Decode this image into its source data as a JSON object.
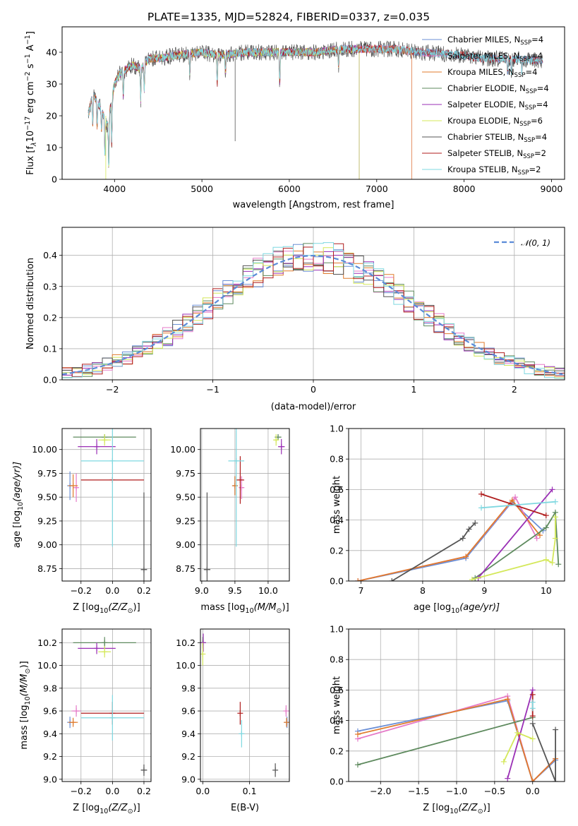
{
  "colors": {
    "Chabrier MILES": "#6b8fd6",
    "Salpeter MILES": "#e57ac8",
    "Kroupa MILES": "#e07b2c",
    "Chabrier ELODIE": "#5e8a5e",
    "Salpeter ELODIE": "#9a2fb5",
    "Kroupa ELODIE": "#d4e85a",
    "Chabrier STELIB": "#555555",
    "Salpeter STELIB": "#b01e1e",
    "Kroupa STELIB": "#7fd8e0",
    "normal": "#5b8bd8"
  },
  "chart_data": [
    {
      "id": "spectrum",
      "type": "line",
      "title": "PLATE=1335, MJD=52824, FIBERID=0337, z=0.035",
      "xlabel": "wavelength [Angstrom, rest frame]",
      "ylabel": "Flux [f",
      "ylabel_sub": "λ",
      "ylabel_rest": "10",
      "ylabel_exp": "−17",
      "ylabel_tail": " erg cm",
      "ylabel_exp2": "−2",
      "ylabel_tail2": " s",
      "ylabel_exp3": "−1",
      "ylabel_tail3": " A",
      "ylabel_exp4": "−1",
      "ylabel_end": "]",
      "xlim": [
        3400,
        9150
      ],
      "ylim": [
        0,
        48
      ],
      "xticks": [
        "4000",
        "5000",
        "6000",
        "7000",
        "8000",
        "9000"
      ],
      "yticks": [
        "0",
        "10",
        "20",
        "30",
        "40"
      ],
      "legend": [
        {
          "model": "Chabrier MILES",
          "n": "4"
        },
        {
          "model": "Salpeter MILES",
          "n": "4"
        },
        {
          "model": "Kroupa MILES",
          "n": "4"
        },
        {
          "model": "Chabrier ELODIE",
          "n": "4"
        },
        {
          "model": "Salpeter ELODIE",
          "n": "4"
        },
        {
          "model": "Kroupa ELODIE",
          "n": "6"
        },
        {
          "model": "Chabrier STELIB",
          "n": "4"
        },
        {
          "model": "Salpeter STELIB",
          "n": "2"
        },
        {
          "model": "Kroupa STELIB",
          "n": "2"
        }
      ],
      "legend_label_prefix": "N",
      "legend_label_sub": "SSP",
      "legend_placement": "right",
      "continuum": [
        [
          3700,
          20
        ],
        [
          3750,
          27
        ],
        [
          3850,
          22
        ],
        [
          3920,
          17
        ],
        [
          3960,
          24
        ],
        [
          4000,
          30
        ],
        [
          4050,
          33
        ],
        [
          4100,
          34
        ],
        [
          4200,
          36
        ],
        [
          4300,
          35
        ],
        [
          4400,
          38
        ],
        [
          4500,
          38
        ],
        [
          4700,
          39
        ],
        [
          5000,
          40
        ],
        [
          5200,
          39
        ],
        [
          5500,
          40
        ],
        [
          5800,
          40
        ],
        [
          6000,
          40
        ],
        [
          6300,
          40
        ],
        [
          6600,
          41
        ],
        [
          6800,
          41
        ],
        [
          7000,
          41
        ],
        [
          7200,
          41
        ],
        [
          7500,
          40
        ],
        [
          7800,
          39.5
        ],
        [
          8000,
          39
        ],
        [
          8200,
          38
        ],
        [
          8500,
          38
        ],
        [
          8800,
          37.5
        ],
        [
          8900,
          37.5
        ]
      ],
      "absorption_dips": [
        [
          3750,
          10
        ],
        [
          3800,
          8
        ],
        [
          3850,
          7
        ],
        [
          3890,
          12
        ],
        [
          3934,
          16
        ],
        [
          3968,
          14
        ],
        [
          4101,
          8
        ],
        [
          4300,
          10
        ],
        [
          4340,
          8
        ],
        [
          4861,
          6
        ],
        [
          5175,
          9
        ],
        [
          5270,
          6
        ],
        [
          5890,
          10
        ],
        [
          6563,
          5
        ],
        [
          8500,
          4
        ],
        [
          8542,
          5
        ],
        [
          8662,
          4
        ]
      ]
    },
    {
      "id": "residuals",
      "type": "histogram",
      "xlabel": "(data-model)/error",
      "ylabel": "Normed distribution",
      "xlim": [
        -2.5,
        2.5
      ],
      "ylim": [
        0,
        0.49
      ],
      "xticks": [
        "−2",
        "−1",
        "0",
        "1",
        "2"
      ],
      "yticks": [
        "0.0",
        "0.1",
        "0.2",
        "0.3",
        "0.4"
      ],
      "legend_label": "𝒩(0, 1)",
      "legend_placement": "top-right",
      "bin_width": 0.1
    },
    {
      "id": "age-vs-Z",
      "type": "scatter",
      "xlabel": "Z [log",
      "xlabel_sub": "10",
      "xlabel_rest": "(Z/Z",
      "xlabel_sub2": "⊙",
      "xlabel_end": ")]",
      "ylabel": "age  [log",
      "ylabel_sub": "10",
      "ylabel_rest": "(age/yr)]",
      "xlim": [
        -0.32,
        0.245
      ],
      "ylim": [
        8.62,
        10.22
      ],
      "xticks": [
        {
          "v": -0.2,
          "t": "−0.2"
        },
        {
          "v": 0.0,
          "t": "0.0"
        },
        {
          "v": 0.2,
          "t": "0.2"
        }
      ],
      "yticks": [
        {
          "v": 8.75,
          "t": "8.75"
        },
        {
          "v": 9.0,
          "t": "9.00"
        },
        {
          "v": 9.25,
          "t": "9.25"
        },
        {
          "v": 9.5,
          "t": "9.50"
        },
        {
          "v": 9.75,
          "t": "9.75"
        },
        {
          "v": 10.0,
          "t": "10.00"
        }
      ],
      "points": [
        {
          "m": "Chabrier MILES",
          "x": -0.27,
          "y": 9.62,
          "xe": 0.01,
          "ye": 0.15
        },
        {
          "m": "Salpeter MILES",
          "x": -0.23,
          "y": 9.6,
          "xe": 0.01,
          "ye": 0.15
        },
        {
          "m": "Kroupa MILES",
          "x": -0.25,
          "y": 9.62,
          "xe": 0.03,
          "ye": 0.12
        },
        {
          "m": "Chabrier ELODIE",
          "x": -0.05,
          "y": 10.13,
          "xe": 0.2,
          "ye": 0.03
        },
        {
          "m": "Salpeter ELODIE",
          "x": -0.1,
          "y": 10.03,
          "xe": 0.12,
          "ye": 0.08
        },
        {
          "m": "Kroupa ELODIE",
          "x": -0.05,
          "y": 10.1,
          "xe": 0.04,
          "ye": 0.06
        },
        {
          "m": "Chabrier STELIB",
          "x": 0.2,
          "y": 8.74,
          "xe": 0.02,
          "ye": 0.81
        },
        {
          "m": "Salpeter STELIB",
          "x": 0.0,
          "y": 9.68,
          "xe": 0.2,
          "ye": 0.0
        },
        {
          "m": "Kroupa STELIB",
          "x": 0.0,
          "y": 9.88,
          "xe": 0.2,
          "ye": 0.9
        }
      ]
    },
    {
      "id": "age-vs-mass",
      "type": "scatter",
      "xlabel": "mass [log",
      "xlabel_sub": "10",
      "xlabel_rest": "(M/M",
      "xlabel_sub2": "⊙",
      "xlabel_end": ")]",
      "xlim": [
        8.98,
        10.32
      ],
      "ylim": [
        8.62,
        10.22
      ],
      "xticks": [
        {
          "v": 9.0,
          "t": "9.0"
        },
        {
          "v": 9.5,
          "t": "9.5"
        },
        {
          "v": 10.0,
          "t": "10.0"
        }
      ],
      "yticks": [
        {
          "v": 8.75,
          "t": "8.75"
        },
        {
          "v": 9.0,
          "t": "9.00"
        },
        {
          "v": 9.25,
          "t": "9.25"
        },
        {
          "v": 9.5,
          "t": "9.50"
        },
        {
          "v": 9.75,
          "t": "9.75"
        },
        {
          "v": 10.0,
          "t": "10.00"
        }
      ],
      "points": [
        {
          "m": "Chabrier MILES",
          "x": 9.5,
          "y": 9.62,
          "xe": 0.02,
          "ye": 0.1
        },
        {
          "m": "Salpeter MILES",
          "x": 9.6,
          "y": 9.6,
          "xe": 0.03,
          "ye": 0.12
        },
        {
          "m": "Kroupa MILES",
          "x": 9.5,
          "y": 9.62,
          "xe": 0.03,
          "ye": 0.1
        },
        {
          "m": "Chabrier ELODIE",
          "x": 10.15,
          "y": 10.13,
          "xe": 0.05,
          "ye": 0.03
        },
        {
          "m": "Salpeter ELODIE",
          "x": 10.2,
          "y": 10.03,
          "xe": 0.05,
          "ye": 0.08
        },
        {
          "m": "Kroupa ELODIE",
          "x": 10.12,
          "y": 10.1,
          "xe": 0.04,
          "ye": 0.06
        },
        {
          "m": "Chabrier STELIB",
          "x": 9.08,
          "y": 8.74,
          "xe": 0.05,
          "ye": 0.81
        },
        {
          "m": "Salpeter STELIB",
          "x": 9.58,
          "y": 9.68,
          "xe": 0.06,
          "ye": 0.25
        },
        {
          "m": "Kroupa STELIB",
          "x": 9.52,
          "y": 9.88,
          "xe": 0.12,
          "ye": 0.9
        }
      ]
    },
    {
      "id": "weight-vs-age",
      "type": "line",
      "xlabel": "age  [log",
      "xlabel_sub": "10",
      "xlabel_rest": "(age/yr)]",
      "ylabel": "mass weight",
      "xlim": [
        6.8,
        10.3
      ],
      "ylim": [
        0,
        1
      ],
      "xticks": [
        {
          "v": 7,
          "t": "7"
        },
        {
          "v": 8,
          "t": "8"
        },
        {
          "v": 9,
          "t": "9"
        },
        {
          "v": 10,
          "t": "10"
        }
      ],
      "yticks": [
        {
          "v": 0,
          "t": "0.0"
        },
        {
          "v": 0.2,
          "t": "0.2"
        },
        {
          "v": 0.4,
          "t": "0.4"
        },
        {
          "v": 0.6,
          "t": "0.6"
        },
        {
          "v": 0.8,
          "t": "0.8"
        },
        {
          "v": 1.0,
          "t": "1.0"
        }
      ],
      "series": [
        {
          "m": "Chabrier MILES",
          "x": [
            6.95,
            8.7,
            9.45,
            9.95
          ],
          "y": [
            0.0,
            0.15,
            0.52,
            0.33
          ]
        },
        {
          "m": "Salpeter MILES",
          "x": [
            6.95,
            8.7,
            9.5,
            9.85
          ],
          "y": [
            0.0,
            0.16,
            0.55,
            0.28
          ]
        },
        {
          "m": "Kroupa MILES",
          "x": [
            6.95,
            8.7,
            9.45,
            9.9
          ],
          "y": [
            0.0,
            0.16,
            0.53,
            0.3
          ]
        },
        {
          "m": "Chabrier ELODIE",
          "x": [
            8.85,
            10.0,
            10.15,
            10.2
          ],
          "y": [
            0.02,
            0.35,
            0.45,
            0.11
          ]
        },
        {
          "m": "Salpeter ELODIE",
          "x": [
            8.9,
            10.1
          ],
          "y": [
            0.02,
            0.6
          ]
        },
        {
          "m": "Kroupa ELODIE",
          "x": [
            8.8,
            10.0,
            10.1,
            10.15,
            10.15
          ],
          "y": [
            0.01,
            0.14,
            0.12,
            0.28,
            0.42
          ]
        },
        {
          "m": "Chabrier STELIB",
          "x": [
            7.5,
            8.65,
            8.75,
            8.85
          ],
          "y": [
            0.0,
            0.28,
            0.34,
            0.38
          ]
        },
        {
          "m": "Salpeter STELIB",
          "x": [
            8.95,
            10.0
          ],
          "y": [
            0.57,
            0.43
          ]
        },
        {
          "m": "Kroupa STELIB",
          "x": [
            8.95,
            10.15
          ],
          "y": [
            0.48,
            0.52
          ]
        }
      ]
    },
    {
      "id": "mass-vs-Z",
      "type": "scatter",
      "xlabel": "Z [log",
      "xlabel_sub": "10",
      "xlabel_rest": "(Z/Z",
      "xlabel_sub2": "⊙",
      "xlabel_end": ")]",
      "ylabel": "mass [log",
      "ylabel_sub": "10",
      "ylabel_rest": "(M/M",
      "ylabel_sub2": "⊙",
      "ylabel_end": ")]",
      "xlim": [
        -0.32,
        0.245
      ],
      "ylim": [
        8.98,
        10.32
      ],
      "xticks": [
        {
          "v": -0.2,
          "t": "−0.2"
        },
        {
          "v": 0.0,
          "t": "0.0"
        },
        {
          "v": 0.2,
          "t": "0.2"
        }
      ],
      "yticks": [
        {
          "v": 9.0,
          "t": "9.0"
        },
        {
          "v": 9.2,
          "t": "9.2"
        },
        {
          "v": 9.4,
          "t": "9.4"
        },
        {
          "v": 9.6,
          "t": "9.6"
        },
        {
          "v": 9.8,
          "t": "9.8"
        },
        {
          "v": 10.0,
          "t": "10.0"
        },
        {
          "v": 10.2,
          "t": "10.2"
        }
      ],
      "points": [
        {
          "m": "Chabrier MILES",
          "x": -0.27,
          "y": 9.5,
          "xe": 0.01,
          "ye": 0.05
        },
        {
          "m": "Salpeter MILES",
          "x": -0.23,
          "y": 9.6,
          "xe": 0.03,
          "ye": 0.05
        },
        {
          "m": "Kroupa MILES",
          "x": -0.25,
          "y": 9.5,
          "xe": 0.03,
          "ye": 0.04
        },
        {
          "m": "Chabrier ELODIE",
          "x": -0.05,
          "y": 10.2,
          "xe": 0.2,
          "ye": 0.05
        },
        {
          "m": "Salpeter ELODIE",
          "x": -0.1,
          "y": 10.15,
          "xe": 0.12,
          "ye": 0.05
        },
        {
          "m": "Kroupa ELODIE",
          "x": -0.05,
          "y": 10.12,
          "xe": 0.04,
          "ye": 0.05
        },
        {
          "m": "Chabrier STELIB",
          "x": 0.2,
          "y": 9.08,
          "xe": 0.02,
          "ye": 0.05
        },
        {
          "m": "Salpeter STELIB",
          "x": 0.0,
          "y": 9.58,
          "xe": 0.2,
          "ye": 0.1
        },
        {
          "m": "Kroupa STELIB",
          "x": 0.0,
          "y": 9.54,
          "xe": 0.2,
          "ye": 0.2
        }
      ]
    },
    {
      "id": "mass-vs-EBV",
      "type": "scatter",
      "xlabel": "E(B-V)",
      "xlim": [
        -0.005,
        0.185
      ],
      "ylim": [
        8.98,
        10.32
      ],
      "xticks": [
        {
          "v": 0.0,
          "t": "0.0"
        },
        {
          "v": 0.1,
          "t": "0.1"
        }
      ],
      "yticks": [
        {
          "v": 9.0,
          "t": "9.0"
        },
        {
          "v": 9.2,
          "t": "9.2"
        },
        {
          "v": 9.4,
          "t": "9.4"
        },
        {
          "v": 9.6,
          "t": "9.6"
        },
        {
          "v": 9.8,
          "t": "9.8"
        },
        {
          "v": 10.0,
          "t": "10.0"
        },
        {
          "v": 10.2,
          "t": "10.2"
        }
      ],
      "points": [
        {
          "m": "Chabrier MILES",
          "x": 0.18,
          "y": 9.5,
          "xe": 0.0,
          "ye": 0.05
        },
        {
          "m": "Salpeter MILES",
          "x": 0.178,
          "y": 9.6,
          "xe": 0.0,
          "ye": 0.05
        },
        {
          "m": "Kroupa MILES",
          "x": 0.179,
          "y": 9.5,
          "xe": 0.0,
          "ye": 0.04
        },
        {
          "m": "Chabrier ELODIE",
          "x": 0.0,
          "y": 10.2,
          "xe": 0.0,
          "ye": 0.05
        },
        {
          "m": "Salpeter ELODIE",
          "x": 0.001,
          "y": 10.2,
          "xe": 0.0,
          "ye": 0.08
        },
        {
          "m": "Kroupa ELODIE",
          "x": 0.0,
          "y": 10.1,
          "xe": 0.0,
          "ye": 0.1
        },
        {
          "m": "Chabrier STELIB",
          "x": 0.155,
          "y": 9.08,
          "xe": 0.0,
          "ye": 0.06
        },
        {
          "m": "Salpeter STELIB",
          "x": 0.08,
          "y": 9.58,
          "xe": 0.0,
          "ye": 0.1
        },
        {
          "m": "Kroupa STELIB",
          "x": 0.083,
          "y": 9.4,
          "xe": 0.0,
          "ye": 0.12
        }
      ]
    },
    {
      "id": "weight-vs-Z",
      "type": "line",
      "xlabel": "Z [log",
      "xlabel_sub": "10",
      "xlabel_rest": "(Z/Z",
      "xlabel_sub2": "⊙",
      "xlabel_end": ")]",
      "ylabel": "mass weight",
      "xlim": [
        -2.42,
        0.42
      ],
      "ylim": [
        0,
        1
      ],
      "xticks": [
        {
          "v": -2.0,
          "t": "−2.0"
        },
        {
          "v": -1.5,
          "t": "−1.5"
        },
        {
          "v": -1.0,
          "t": "−1.0"
        },
        {
          "v": -0.5,
          "t": "−0.5"
        },
        {
          "v": 0.0,
          "t": "0.0"
        }
      ],
      "yticks": [
        {
          "v": 0,
          "t": "0.0"
        },
        {
          "v": 0.2,
          "t": "0.2"
        },
        {
          "v": 0.4,
          "t": "0.4"
        },
        {
          "v": 0.6,
          "t": "0.6"
        },
        {
          "v": 0.8,
          "t": "0.8"
        },
        {
          "v": 1.0,
          "t": "1.0"
        }
      ],
      "series": [
        {
          "m": "Chabrier MILES",
          "x": [
            -2.3,
            -0.33,
            0.0,
            0.3
          ],
          "y": [
            0.33,
            0.53,
            0.0,
            0.14
          ]
        },
        {
          "m": "Salpeter MILES",
          "x": [
            -2.3,
            -0.33,
            0.0,
            0.3
          ],
          "y": [
            0.28,
            0.56,
            0.0,
            0.15
          ]
        },
        {
          "m": "Kroupa MILES",
          "x": [
            -2.3,
            -0.33,
            0.0,
            0.3
          ],
          "y": [
            0.31,
            0.54,
            0.0,
            0.15
          ]
        },
        {
          "m": "Chabrier ELODIE",
          "x": [
            -2.3,
            0.0
          ],
          "y": [
            0.11,
            0.42
          ]
        },
        {
          "m": "Salpeter ELODIE",
          "x": [
            -0.33,
            0.0
          ],
          "y": [
            0.02,
            0.6
          ]
        },
        {
          "m": "Kroupa ELODIE",
          "x": [
            -0.38,
            -0.2,
            0.0
          ],
          "y": [
            0.13,
            0.32,
            0.28
          ]
        },
        {
          "m": "Chabrier STELIB",
          "x": [
            0.0,
            0.3,
            0.3
          ],
          "y": [
            0.38,
            0.0,
            0.34
          ]
        },
        {
          "m": "Salpeter STELIB",
          "x": [
            0.0,
            0.0
          ],
          "y": [
            0.57,
            0.43
          ]
        },
        {
          "m": "Kroupa STELIB",
          "x": [
            0.0,
            0.0
          ],
          "y": [
            0.48,
            0.52
          ]
        }
      ]
    }
  ]
}
